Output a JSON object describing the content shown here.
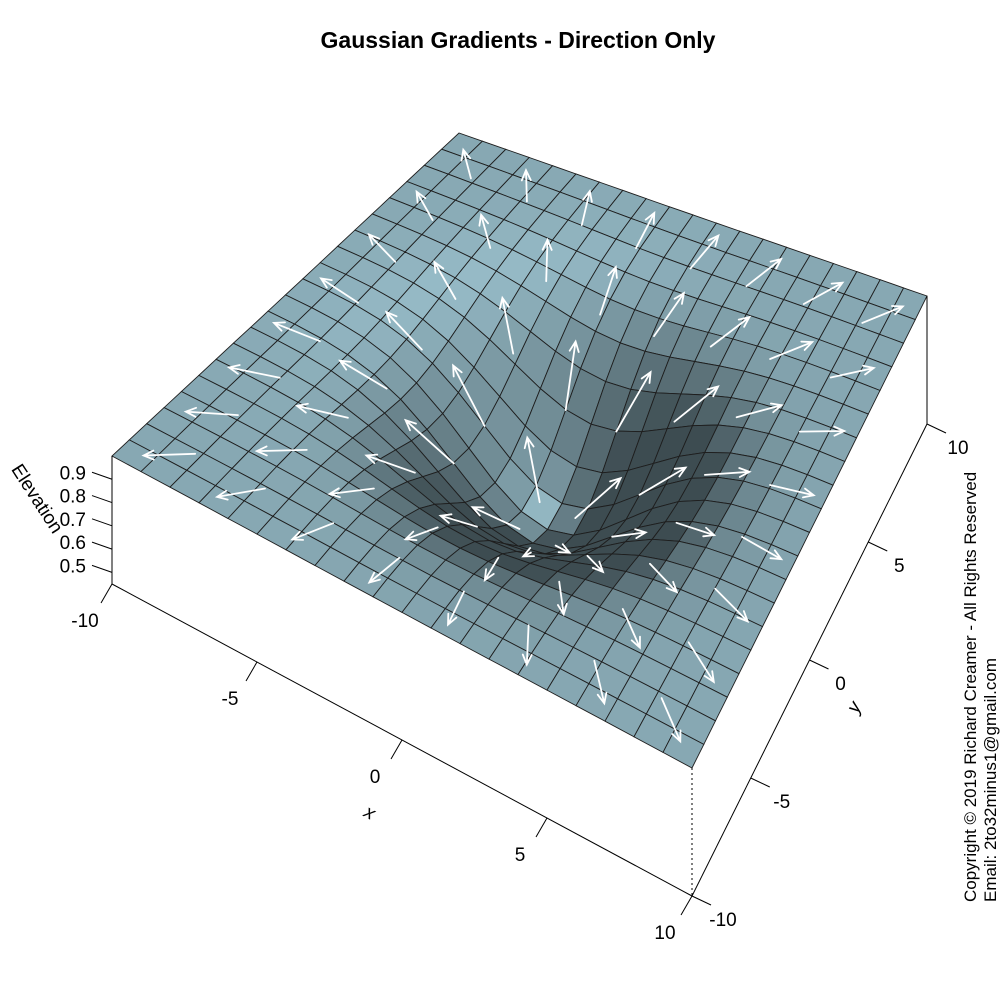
{
  "chart_data": {
    "type": "surface",
    "title": "Gaussian Gradients - Direction Only",
    "xlabel": "x",
    "ylabel": "y",
    "zlabel": "Elevation",
    "x_ticks": [
      "-10",
      "-5",
      "0",
      "5",
      "10"
    ],
    "y_ticks": [
      "-10",
      "-5",
      "0",
      "5",
      "10"
    ],
    "z_ticks": [
      "0.5",
      "0.6",
      "0.7",
      "0.8",
      "0.9"
    ],
    "xlim": [
      -10,
      10
    ],
    "ylim": [
      -10,
      10
    ],
    "zlim": [
      0.45,
      1.0
    ],
    "surface_function": "z = 1 - 0.5 * exp(-(x^2 + y^2) / 18)",
    "grid_cells": 20,
    "arrows": "unit-length gradient direction vectors on a grid, pointing away from the center minimum",
    "colors": {
      "surface": "#87a8b3",
      "mesh": "#1e1e1e",
      "arrow": "#ffffff"
    }
  },
  "copyright": {
    "line1": "Copyright © 2019 Richard Creamer - All Rights Reserved",
    "line2": "Email: 2to32minus1@gmail.com"
  }
}
